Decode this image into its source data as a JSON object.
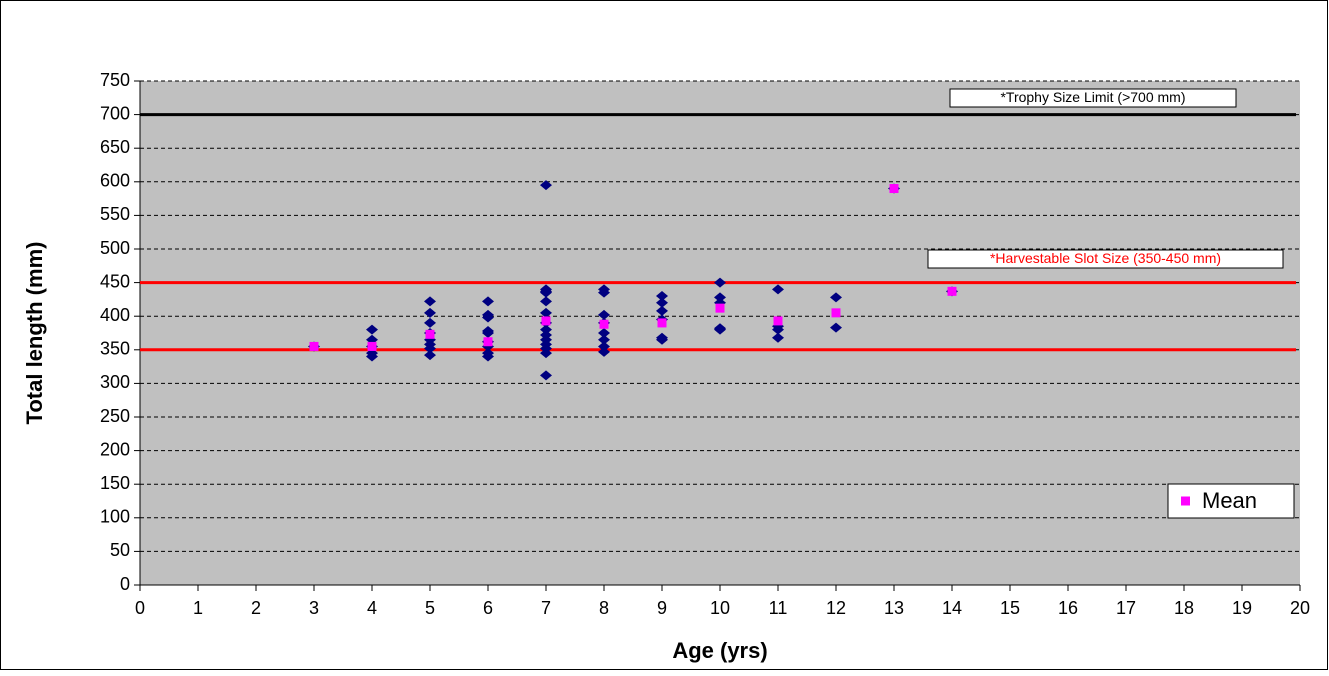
{
  "chart_data": {
    "type": "scatter",
    "x_label": "Age (yrs)",
    "y_label": "Total length (mm)",
    "xlim": [
      0,
      20
    ],
    "xticks": [
      0,
      1,
      2,
      3,
      4,
      5,
      6,
      7,
      8,
      9,
      10,
      11,
      12,
      13,
      14,
      15,
      16,
      17,
      18,
      19,
      20
    ],
    "ylim": [
      0,
      750
    ],
    "yticks": [
      0,
      50,
      100,
      150,
      200,
      250,
      300,
      350,
      400,
      450,
      500,
      550,
      600,
      650,
      700,
      750
    ],
    "grid": true,
    "legend": "lower right",
    "series": [
      {
        "color": "#000080",
        "marker": "diamond",
        "x": [
          3,
          4,
          4,
          4,
          4,
          4,
          5,
          5,
          5,
          5,
          5,
          5,
          5,
          5,
          6,
          6,
          6,
          6,
          6,
          6,
          6,
          6,
          6,
          7,
          7,
          7,
          7,
          7,
          7,
          7,
          7,
          7,
          7,
          7,
          7,
          7,
          7,
          8,
          8,
          8,
          8,
          8,
          8,
          8,
          8,
          9,
          9,
          9,
          9,
          9,
          9,
          10,
          10,
          10,
          10,
          10,
          11,
          11,
          11,
          11,
          12,
          12,
          13,
          14
        ],
        "values": [
          355,
          380,
          365,
          355,
          345,
          340,
          422,
          405,
          390,
          375,
          365,
          358,
          352,
          342,
          422,
          402,
          398,
          378,
          375,
          362,
          355,
          345,
          340,
          595,
          440,
          437,
          435,
          422,
          405,
          390,
          380,
          372,
          365,
          358,
          352,
          345,
          312,
          440,
          435,
          402,
          390,
          375,
          365,
          355,
          347,
          430,
          420,
          408,
          395,
          368,
          365,
          450,
          428,
          420,
          382,
          380,
          440,
          385,
          380,
          368,
          428,
          383,
          590,
          437
        ]
      },
      {
        "name": "Mean",
        "color": "#ff00ff",
        "marker": "square",
        "x": [
          3,
          4,
          5,
          6,
          7,
          8,
          9,
          10,
          11,
          12,
          13,
          14
        ],
        "values": [
          355,
          355,
          373,
          362,
          393,
          388,
          390,
          412,
          393,
          405,
          590,
          437
        ]
      }
    ],
    "hlines": [
      {
        "value": 700,
        "color": "#000000"
      },
      {
        "value": 450,
        "color": "#ff0000"
      },
      {
        "value": 350,
        "color": "#ff0000"
      }
    ],
    "annotations": [
      {
        "text": "*Trophy Size Limit (>700 mm)",
        "color": "#000000"
      },
      {
        "text": "*Harvestable Slot Size (350-450 mm)",
        "color": "#ff0000"
      }
    ]
  }
}
